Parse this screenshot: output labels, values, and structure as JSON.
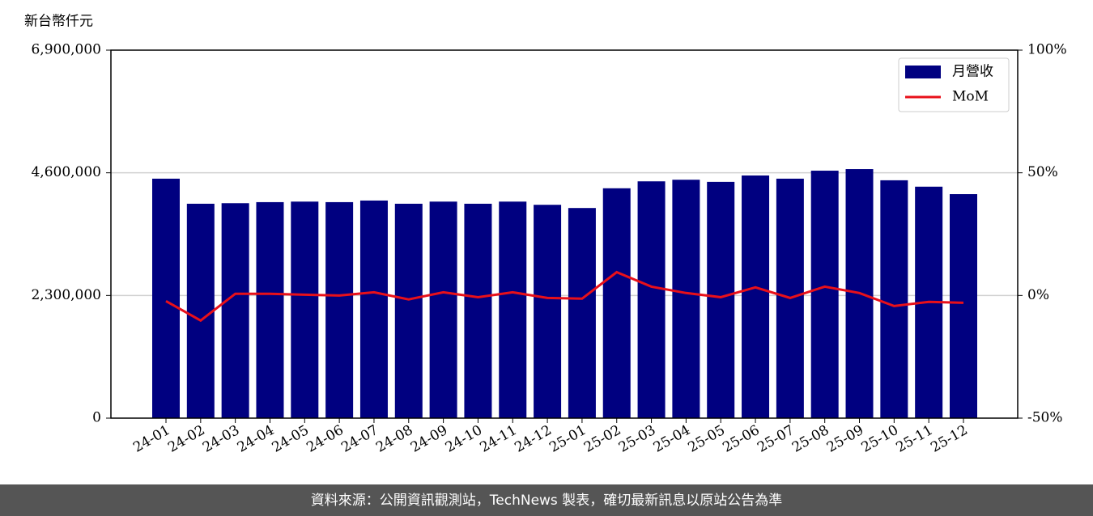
{
  "chart_data": {
    "type": "bar_line",
    "y_label": "新台幣仟元",
    "categories": [
      "24-01",
      "24-02",
      "24-03",
      "24-04",
      "24-05",
      "24-06",
      "24-07",
      "24-08",
      "24-09",
      "24-10",
      "24-11",
      "24-12",
      "25-01",
      "25-02",
      "25-03",
      "25-04",
      "25-05",
      "25-06",
      "25-07",
      "25-08",
      "25-09",
      "25-10",
      "25-11",
      "25-12"
    ],
    "series": [
      {
        "name": "月營收",
        "type": "bar",
        "color": "#000080",
        "values": [
          4490000,
          4020000,
          4030000,
          4050000,
          4060000,
          4050000,
          4080000,
          4020000,
          4060000,
          4020000,
          4060000,
          4000000,
          3940000,
          4310000,
          4440000,
          4470000,
          4430000,
          4550000,
          4490000,
          4640000,
          4670000,
          4460000,
          4340000,
          4200000
        ]
      },
      {
        "name": "MoM",
        "type": "line",
        "axis": "y2",
        "color": "#e8101a",
        "values": [
          -2.3,
          -10.2,
          0.7,
          0.7,
          0.3,
          0,
          1.3,
          -1.6,
          1.3,
          -0.7,
          1.3,
          -1.0,
          -1.3,
          9.5,
          3.6,
          1.0,
          -0.7,
          3.3,
          -1.0,
          3.6,
          1.0,
          -4.3,
          -2.6,
          -3.0
        ]
      }
    ],
    "ylim": [
      0,
      6900000
    ],
    "yticks": [
      0,
      {
        "value": 2300000,
        "label": "2,300,000"
      },
      {
        "value": 4600000,
        "label": "4,600,000"
      },
      {
        "value": 6900000,
        "label": "6,900,000"
      }
    ],
    "y2lim": [
      -50,
      100
    ],
    "y2ticks": [
      {
        "value": -50,
        "label": "-50%"
      },
      {
        "value": 0,
        "label": "0%"
      },
      {
        "value": 50,
        "label": "50%"
      },
      {
        "value": 100,
        "label": "100%"
      }
    ],
    "grid": true,
    "legend": "upper right",
    "source": "資料來源：公開資訊觀測站，TechNews 製表，確切最新訊息以原站公告為準"
  }
}
